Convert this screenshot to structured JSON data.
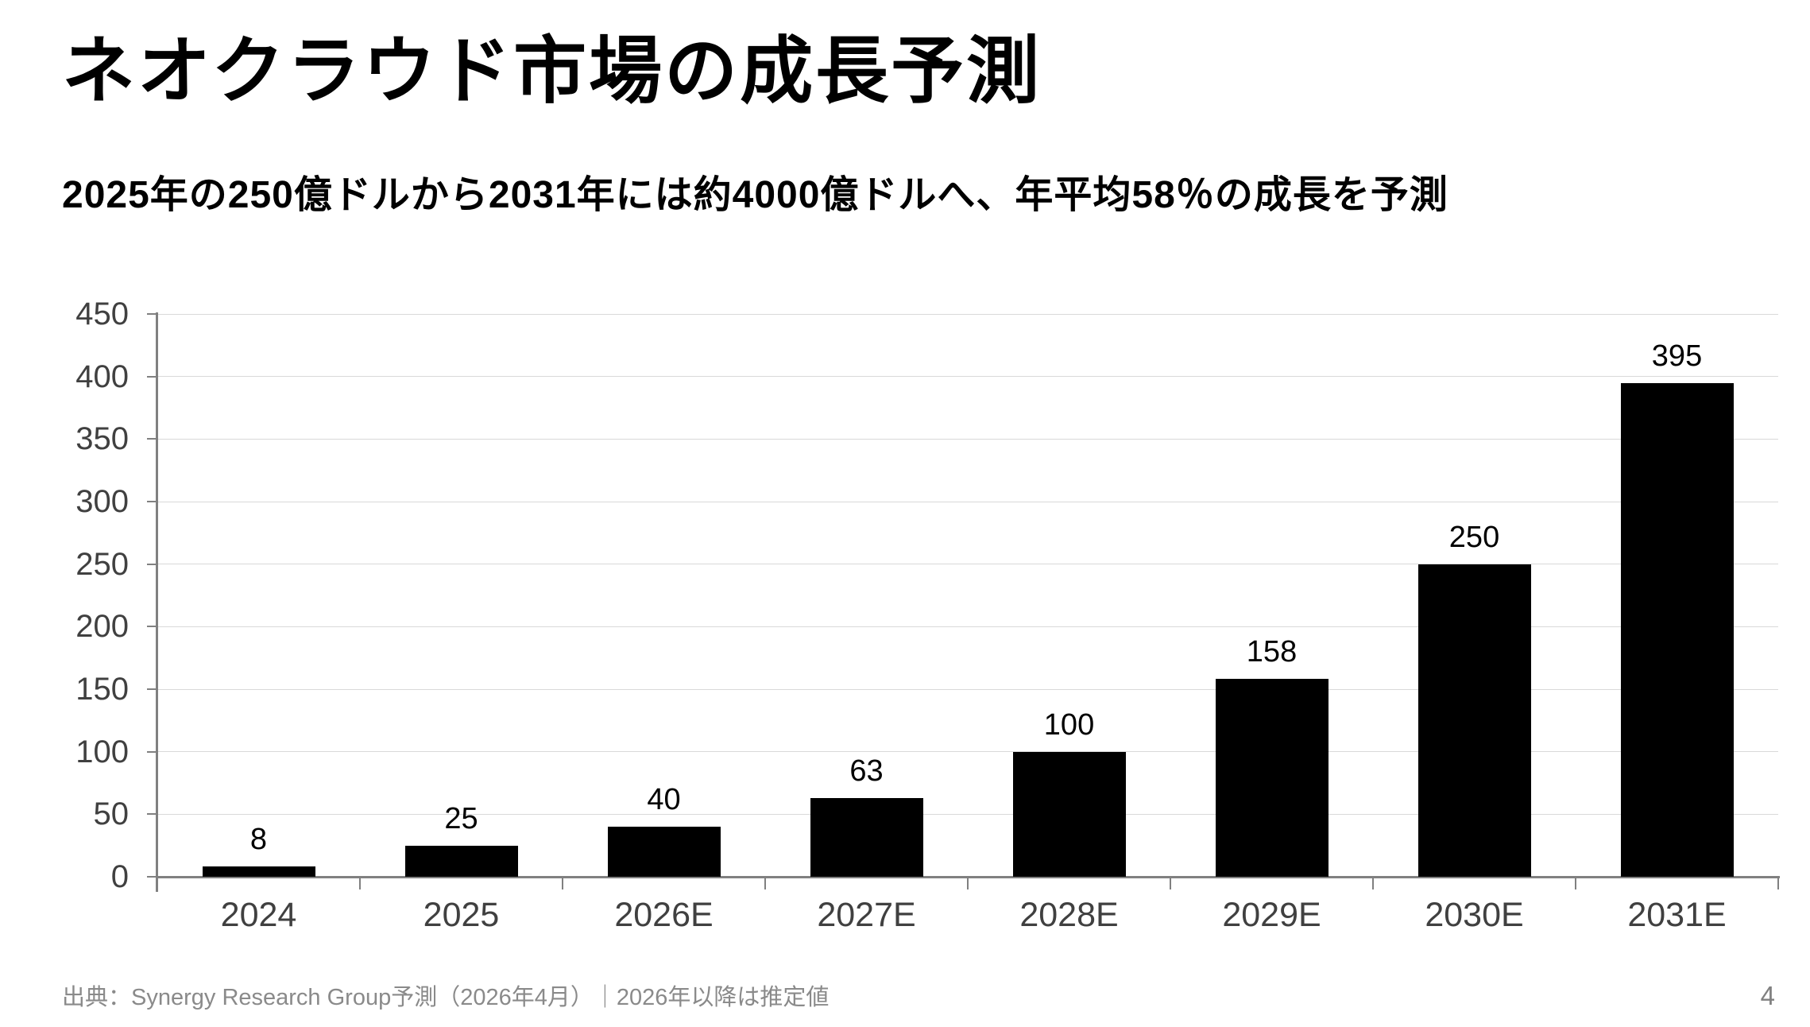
{
  "slide": {
    "title": "ネオクラウド市場の成長予測",
    "subtitle": "2025年の250億ドルから2031年には約4000億ドルへ、年平均58％の成長を予測",
    "footer": {
      "source": "出典：Synergy Research Group予測（2026年4月）｜2026年以降は推定値",
      "page_number": "4"
    }
  },
  "colors": {
    "background": "#ffffff",
    "bar": "#000000",
    "gridline": "#d9d9d9",
    "axis": "#808080",
    "y_tick_label": "#404040",
    "x_tick_label": "#404040",
    "data_label": "#000000",
    "title_text": "#000000",
    "footer_text": "#8a8a8a"
  },
  "chart_data": {
    "type": "bar",
    "categories": [
      "2024",
      "2025",
      "2026E",
      "2027E",
      "2028E",
      "2029E",
      "2030E",
      "2031E"
    ],
    "values": [
      8,
      25,
      40,
      63,
      100,
      158,
      250,
      395
    ],
    "data_labels": [
      "8",
      "25",
      "40",
      "63",
      "100",
      "158",
      "250",
      "395"
    ],
    "title": "",
    "xlabel": "",
    "ylabel": "",
    "ylim": [
      0,
      450
    ],
    "ytick_step": 50,
    "y_tick_labels": [
      "0",
      "50",
      "100",
      "150",
      "200",
      "250",
      "300",
      "350",
      "400",
      "450"
    ],
    "grid": true,
    "legend": false
  }
}
